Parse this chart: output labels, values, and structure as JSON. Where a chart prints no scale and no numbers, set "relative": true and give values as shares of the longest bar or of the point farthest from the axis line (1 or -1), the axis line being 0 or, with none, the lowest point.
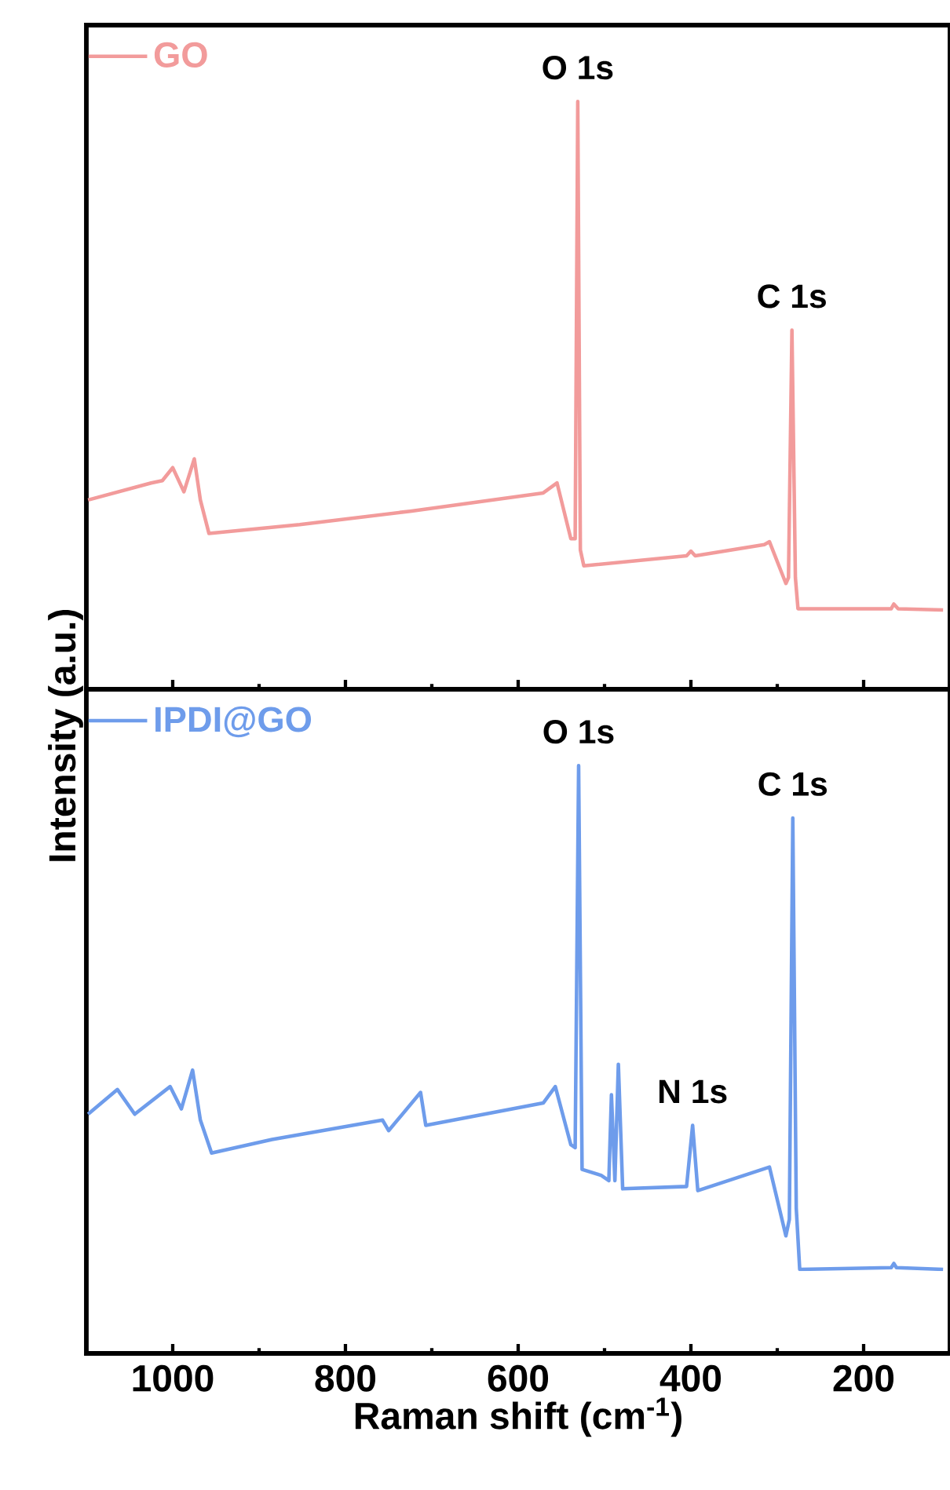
{
  "chart_data": [
    {
      "type": "line",
      "relative": true,
      "xlim": [
        1100,
        100
      ],
      "xticks": [
        1000,
        {
          "value": 900,
          "label": null
        },
        800,
        {
          "value": 700,
          "label": null
        },
        600,
        {
          "value": 500,
          "label": null
        },
        400,
        {
          "value": 300,
          "label": null
        },
        200,
        {
          "value": 100,
          "label": null
        }
      ],
      "tick_labels": false,
      "legend": "top left",
      "line_style": "solid",
      "series": [
        {
          "name": "GO",
          "color": "#f29b9b",
          "x": [
            1098,
            1025,
            1012,
            1000,
            987,
            975,
            968,
            958,
            853,
            725,
            571,
            555,
            539,
            534,
            531,
            528,
            524,
            405,
            400,
            395,
            315,
            309,
            290,
            287,
            283,
            279,
            276,
            168,
            165,
            160,
            108
          ],
          "values": [
            0.322,
            0.351,
            0.355,
            0.377,
            0.336,
            0.392,
            0.322,
            0.265,
            0.28,
            0.303,
            0.334,
            0.351,
            0.256,
            0.256,
            1.0,
            0.237,
            0.21,
            0.227,
            0.235,
            0.227,
            0.246,
            0.251,
            0.18,
            0.19,
            0.611,
            0.19,
            0.137,
            0.137,
            0.145,
            0.137,
            0.135
          ]
        }
      ],
      "annotations": [
        {
          "text": "O 1s",
          "x": 531,
          "y": 1.0
        },
        {
          "text": "C 1s",
          "x": 283,
          "y": 0.611
        }
      ]
    },
    {
      "type": "line",
      "relative": true,
      "xlim": [
        1100,
        100
      ],
      "xticks": [
        1000,
        {
          "value": 900,
          "label": null
        },
        800,
        {
          "value": 700,
          "label": null
        },
        600,
        {
          "value": 500,
          "label": null
        },
        400,
        {
          "value": 300,
          "label": null
        },
        200,
        {
          "value": 100,
          "label": null
        }
      ],
      "tick_labels": "x",
      "legend": "top left",
      "line_style": "solid",
      "xlabel": "Raman shift (cm$^{-1}$)",
      "ylabel": "Intensity (a.u.)",
      "series": [
        {
          "name": "IPDI@GO",
          "color": "#6e9ceb",
          "x": [
            1098,
            1064,
            1044,
            1003,
            990,
            977,
            968,
            955,
            885,
            757,
            750,
            713,
            707,
            571,
            557,
            539,
            534,
            530,
            526,
            504,
            495,
            492,
            488,
            484,
            479,
            405,
            398,
            392,
            309,
            290,
            286,
            282,
            278,
            274,
            168,
            165,
            162,
            108
          ],
          "values": [
            0.407,
            0.449,
            0.407,
            0.454,
            0.416,
            0.482,
            0.397,
            0.341,
            0.364,
            0.397,
            0.379,
            0.444,
            0.388,
            0.426,
            0.454,
            0.355,
            0.35,
            1.0,
            0.313,
            0.303,
            0.294,
            0.44,
            0.294,
            0.492,
            0.28,
            0.284,
            0.388,
            0.277,
            0.317,
            0.2,
            0.228,
            0.911,
            0.247,
            0.143,
            0.146,
            0.153,
            0.146,
            0.143
          ]
        }
      ],
      "annotations": [
        {
          "text": "O 1s",
          "x": 530,
          "y": 1.0
        },
        {
          "text": "N 1s",
          "x": 398,
          "y": 0.388
        },
        {
          "text": "C 1s",
          "x": 282,
          "y": 0.911
        }
      ]
    }
  ]
}
